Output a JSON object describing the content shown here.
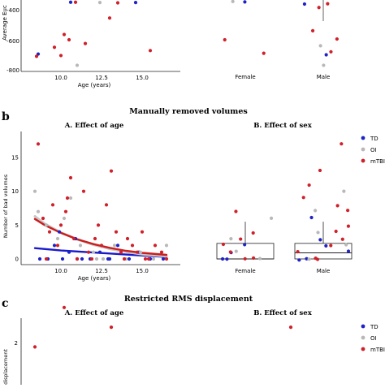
{
  "colors": {
    "TD": "#1f22c6",
    "OI": "#b8b8b8",
    "mTBI": "#d0202a",
    "fit_TD": "#1a1acb",
    "fit_OI": "#c8c8c8",
    "fit_mTBI": "#cc1d1d",
    "box_stroke": "#222222"
  },
  "legend": {
    "entries": [
      {
        "key": "TD",
        "label": "TD"
      },
      {
        "key": "OI",
        "label": "OI"
      },
      {
        "key": "mTBI",
        "label": "mTBI"
      }
    ]
  },
  "panel_a": {
    "ylabel": "Average Euc",
    "xlabel": "Age (years)",
    "yticks": [
      "-400",
      "-600",
      "-800"
    ],
    "xticks": [
      "10.0",
      "12.5",
      "15.0"
    ],
    "sex_categories": [
      "Female",
      "Male"
    ]
  },
  "panel_b": {
    "letter": "b",
    "title": "Manually removed volumes",
    "left_title": "A. Effect of age",
    "right_title": "B. Effect of sex",
    "ylabel": "Number of bad volumes",
    "xlabel": "Age (years)",
    "yticks": [
      "0",
      "5",
      "10",
      "15"
    ],
    "xticks": [
      "10.0",
      "12.5",
      "15.0"
    ],
    "sex_categories": [
      "Female",
      "Male"
    ]
  },
  "panel_c": {
    "letter": "c",
    "title": "Restricted RMS displacement",
    "left_title": "A. Effect of age",
    "right_title": "B. Effect of sex",
    "ylabel": "displacement",
    "yticks": [
      "2"
    ]
  },
  "chart_data": [
    {
      "type": "scatter",
      "panel": "a-age",
      "xlabel": "Age (years)",
      "ylabel": "Average Euc",
      "xlim": [
        8,
        17
      ],
      "ylim": [
        -820,
        -320
      ],
      "series": [
        {
          "name": "TD",
          "points": [
            [
              8.6,
              -695
            ],
            [
              10.6,
              -350
            ],
            [
              13.2,
              -338
            ],
            [
              14.6,
              -352
            ],
            [
              9.5,
              -340
            ]
          ]
        },
        {
          "name": "OI",
          "points": [
            [
              10.8,
              -330
            ],
            [
              11.0,
              -770
            ],
            [
              12.4,
              -352
            ],
            [
              9.0,
              -338
            ],
            [
              14.2,
              -335
            ]
          ]
        },
        {
          "name": "mTBI",
          "points": [
            [
              8.5,
              -710
            ],
            [
              9.6,
              -650
            ],
            [
              10.0,
              -705
            ],
            [
              10.2,
              -565
            ],
            [
              10.5,
              -600
            ],
            [
              11.5,
              -625
            ],
            [
              12.8,
              -338
            ],
            [
              13.5,
              -354
            ],
            [
              15.5,
              -672
            ],
            [
              13.0,
              -455
            ],
            [
              10.9,
              -350
            ],
            [
              9.2,
              -330
            ],
            [
              12.0,
              -340
            ],
            [
              11.8,
              -336
            ],
            [
              14.8,
              -330
            ]
          ]
        }
      ]
    },
    {
      "type": "scatter",
      "panel": "a-sex",
      "categories": [
        "Female",
        "Male"
      ],
      "ylim": [
        -820,
        -320
      ],
      "series": [
        {
          "name": "TD",
          "points": [
            [
              "Female",
              -348
            ],
            [
              "Male",
              -340
            ],
            [
              "Male",
              -700
            ],
            [
              "Male",
              -362
            ]
          ]
        },
        {
          "name": "OI",
          "points": [
            [
              "Female",
              -345
            ],
            [
              "Male",
              -330
            ],
            [
              "Male",
              -640
            ],
            [
              "Male",
              -770
            ]
          ]
        },
        {
          "name": "mTBI",
          "points": [
            [
              "Female",
              -600
            ],
            [
              "Female",
              -690
            ],
            [
              "Female",
              -335
            ],
            [
              "Male",
              -360
            ],
            [
              "Male",
              -385
            ],
            [
              "Male",
              -540
            ],
            [
              "Male",
              -595
            ],
            [
              "Male",
              -680
            ],
            [
              "Male",
              -335
            ],
            [
              "Male",
              -325
            ]
          ]
        }
      ]
    },
    {
      "type": "scatter",
      "panel": "b-age",
      "title": "A. Effect of age",
      "xlabel": "Age (years)",
      "ylabel": "Number of bad volumes",
      "xlim": [
        8,
        17
      ],
      "ylim": [
        -0.9,
        17.5
      ],
      "series": [
        {
          "name": "TD",
          "points": [
            [
              8.7,
              0
            ],
            [
              9.2,
              0
            ],
            [
              9.6,
              2
            ],
            [
              10.1,
              0
            ],
            [
              10.5,
              1
            ],
            [
              10.9,
              3
            ],
            [
              11.3,
              0
            ],
            [
              11.8,
              0
            ],
            [
              12.4,
              1
            ],
            [
              12.9,
              0
            ],
            [
              13.5,
              2
            ],
            [
              14.2,
              0
            ],
            [
              14.8,
              1
            ],
            [
              15.5,
              0
            ],
            [
              16.3,
              0
            ],
            [
              9.9,
              4
            ],
            [
              13.0,
              0
            ],
            [
              11.0,
              0
            ]
          ]
        },
        {
          "name": "OI",
          "points": [
            [
              8.4,
              10
            ],
            [
              8.6,
              7
            ],
            [
              9.1,
              5
            ],
            [
              9.8,
              3
            ],
            [
              10.6,
              9
            ],
            [
              11.2,
              2
            ],
            [
              12.0,
              1
            ],
            [
              12.6,
              0
            ],
            [
              13.3,
              2
            ],
            [
              14.0,
              0
            ],
            [
              14.9,
              1
            ],
            [
              15.7,
              0
            ],
            [
              16.5,
              2
            ],
            [
              10.2,
              6
            ],
            [
              12.2,
              0
            ]
          ]
        },
        {
          "name": "mTBI",
          "points": [
            [
              8.6,
              17
            ],
            [
              8.9,
              6
            ],
            [
              9.3,
              4
            ],
            [
              9.5,
              8
            ],
            [
              9.8,
              2
            ],
            [
              10.0,
              5
            ],
            [
              10.3,
              7
            ],
            [
              10.6,
              12
            ],
            [
              10.8,
              3
            ],
            [
              11.0,
              0
            ],
            [
              11.4,
              10
            ],
            [
              11.7,
              1
            ],
            [
              12.1,
              3
            ],
            [
              12.5,
              2
            ],
            [
              12.8,
              8
            ],
            [
              13.1,
              13
            ],
            [
              13.4,
              4
            ],
            [
              13.7,
              1
            ],
            [
              14.1,
              3
            ],
            [
              14.4,
              2
            ],
            [
              14.7,
              1
            ],
            [
              15.0,
              4
            ],
            [
              15.4,
              0
            ],
            [
              15.8,
              2
            ],
            [
              16.2,
              1
            ],
            [
              16.5,
              0
            ],
            [
              12.3,
              5
            ],
            [
              10.4,
              9
            ],
            [
              9.1,
              0
            ],
            [
              11.9,
              0
            ],
            [
              13.9,
              0
            ],
            [
              15.2,
              0
            ]
          ]
        }
      ],
      "fits": [
        {
          "name": "TD",
          "points": [
            [
              8.4,
              1.6
            ],
            [
              10,
              1.25
            ],
            [
              12,
              0.95
            ],
            [
              14,
              0.65
            ],
            [
              16.5,
              0.3
            ]
          ]
        },
        {
          "name": "OI",
          "points": [
            [
              8.4,
              6.3
            ],
            [
              9,
              5.2
            ],
            [
              10,
              3.9
            ],
            [
              11,
              2.9
            ],
            [
              12,
              2.1
            ],
            [
              13,
              1.5
            ],
            [
              14,
              1.05
            ],
            [
              15,
              0.7
            ],
            [
              16.5,
              0.4
            ]
          ]
        },
        {
          "name": "mTBI",
          "points": [
            [
              8.4,
              5.9
            ],
            [
              9,
              5.0
            ],
            [
              10,
              3.85
            ],
            [
              11,
              2.9
            ],
            [
              12,
              2.2
            ],
            [
              13,
              1.65
            ],
            [
              14,
              1.2
            ],
            [
              15,
              0.9
            ],
            [
              16.5,
              0.6
            ]
          ]
        }
      ]
    },
    {
      "type": "box",
      "panel": "b-sex",
      "title": "B. Effect of sex",
      "categories": [
        "Female",
        "Male"
      ],
      "ylim": [
        -0.9,
        17.5
      ],
      "boxes": [
        {
          "category": "Female",
          "q1": 0,
          "median": 0,
          "q3": 2.3,
          "whisker_low": 0,
          "whisker_high": 5.5
        },
        {
          "category": "Male",
          "q1": 0,
          "median": 0.9,
          "q3": 2.3,
          "whisker_low": 0,
          "whisker_high": 5.5
        }
      ],
      "series": [
        {
          "name": "TD",
          "points": [
            [
              "Female",
              0
            ],
            [
              "Female",
              1
            ],
            [
              "Female",
              0
            ],
            [
              "Female",
              2
            ],
            [
              "Male",
              0
            ],
            [
              "Male",
              1
            ],
            [
              "Male",
              3
            ],
            [
              "Male",
              0
            ],
            [
              "Male",
              2
            ],
            [
              "Male",
              6
            ]
          ]
        },
        {
          "name": "OI",
          "points": [
            [
              "Female",
              6
            ],
            [
              "Female",
              3
            ],
            [
              "Female",
              1
            ],
            [
              "Female",
              0
            ],
            [
              "Male",
              7
            ],
            [
              "Male",
              2
            ],
            [
              "Male",
              10
            ],
            [
              "Male",
              0
            ],
            [
              "Male",
              4
            ]
          ]
        },
        {
          "name": "mTBI",
          "points": [
            [
              "Female",
              0
            ],
            [
              "Female",
              1
            ],
            [
              "Female",
              2
            ],
            [
              "Female",
              3
            ],
            [
              "Female",
              4
            ],
            [
              "Female",
              7
            ],
            [
              "Female",
              0
            ],
            [
              "Male",
              17
            ],
            [
              "Male",
              13
            ],
            [
              "Male",
              11
            ],
            [
              "Male",
              9
            ],
            [
              "Male",
              8
            ],
            [
              "Male",
              5
            ],
            [
              "Male",
              3
            ],
            [
              "Male",
              2
            ],
            [
              "Male",
              1
            ],
            [
              "Male",
              0
            ],
            [
              "Male",
              0
            ],
            [
              "Male",
              4
            ],
            [
              "Male",
              7
            ]
          ]
        }
      ]
    },
    {
      "type": "scatter",
      "panel": "c-age",
      "title": "A. Effect of age",
      "ylabel": "displacement",
      "series": [
        {
          "name": "mTBI",
          "points": [
            [
              10.2,
              3.6
            ],
            [
              13.1,
              2.7
            ],
            [
              8.4,
              1.8
            ]
          ]
        }
      ]
    },
    {
      "type": "scatter",
      "panel": "c-sex",
      "title": "B. Effect of sex",
      "series": [
        {
          "name": "mTBI",
          "points": [
            [
              "Male",
              2.7
            ]
          ]
        }
      ]
    }
  ]
}
